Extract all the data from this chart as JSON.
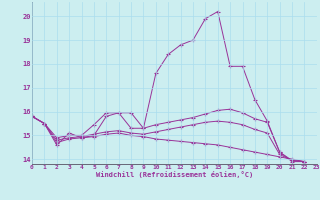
{
  "xlabel": "Windchill (Refroidissement éolien,°C)",
  "background_color": "#cceef0",
  "grid_color": "#aaddee",
  "line_color": "#993399",
  "xlim": [
    0,
    23
  ],
  "ylim": [
    13.8,
    20.6
  ],
  "yticks": [
    14,
    15,
    16,
    17,
    18,
    19,
    20
  ],
  "xticks": [
    0,
    1,
    2,
    3,
    4,
    5,
    6,
    7,
    8,
    9,
    10,
    11,
    12,
    13,
    14,
    15,
    16,
    17,
    18,
    19,
    20,
    21,
    22,
    23
  ],
  "series": [
    [
      15.8,
      15.5,
      14.6,
      15.1,
      14.9,
      15.0,
      15.8,
      15.95,
      15.95,
      15.3,
      17.6,
      18.4,
      18.8,
      19.0,
      19.9,
      20.2,
      17.9,
      17.9,
      16.5,
      15.6,
      14.3,
      13.9,
      13.9
    ],
    [
      15.8,
      15.5,
      14.9,
      15.0,
      15.0,
      15.45,
      15.95,
      15.95,
      15.3,
      15.3,
      15.45,
      15.55,
      15.65,
      15.75,
      15.9,
      16.05,
      16.1,
      15.95,
      15.7,
      15.55,
      14.3,
      13.95,
      13.9
    ],
    [
      15.8,
      15.5,
      14.7,
      14.85,
      14.9,
      14.95,
      15.05,
      15.1,
      15.0,
      14.95,
      14.85,
      14.8,
      14.75,
      14.7,
      14.65,
      14.6,
      14.5,
      14.4,
      14.3,
      14.2,
      14.1,
      14.0,
      13.9
    ],
    [
      15.8,
      15.5,
      14.8,
      14.9,
      14.95,
      15.05,
      15.15,
      15.2,
      15.1,
      15.05,
      15.15,
      15.25,
      15.35,
      15.45,
      15.55,
      15.6,
      15.55,
      15.45,
      15.25,
      15.1,
      14.2,
      13.95,
      13.9
    ]
  ]
}
